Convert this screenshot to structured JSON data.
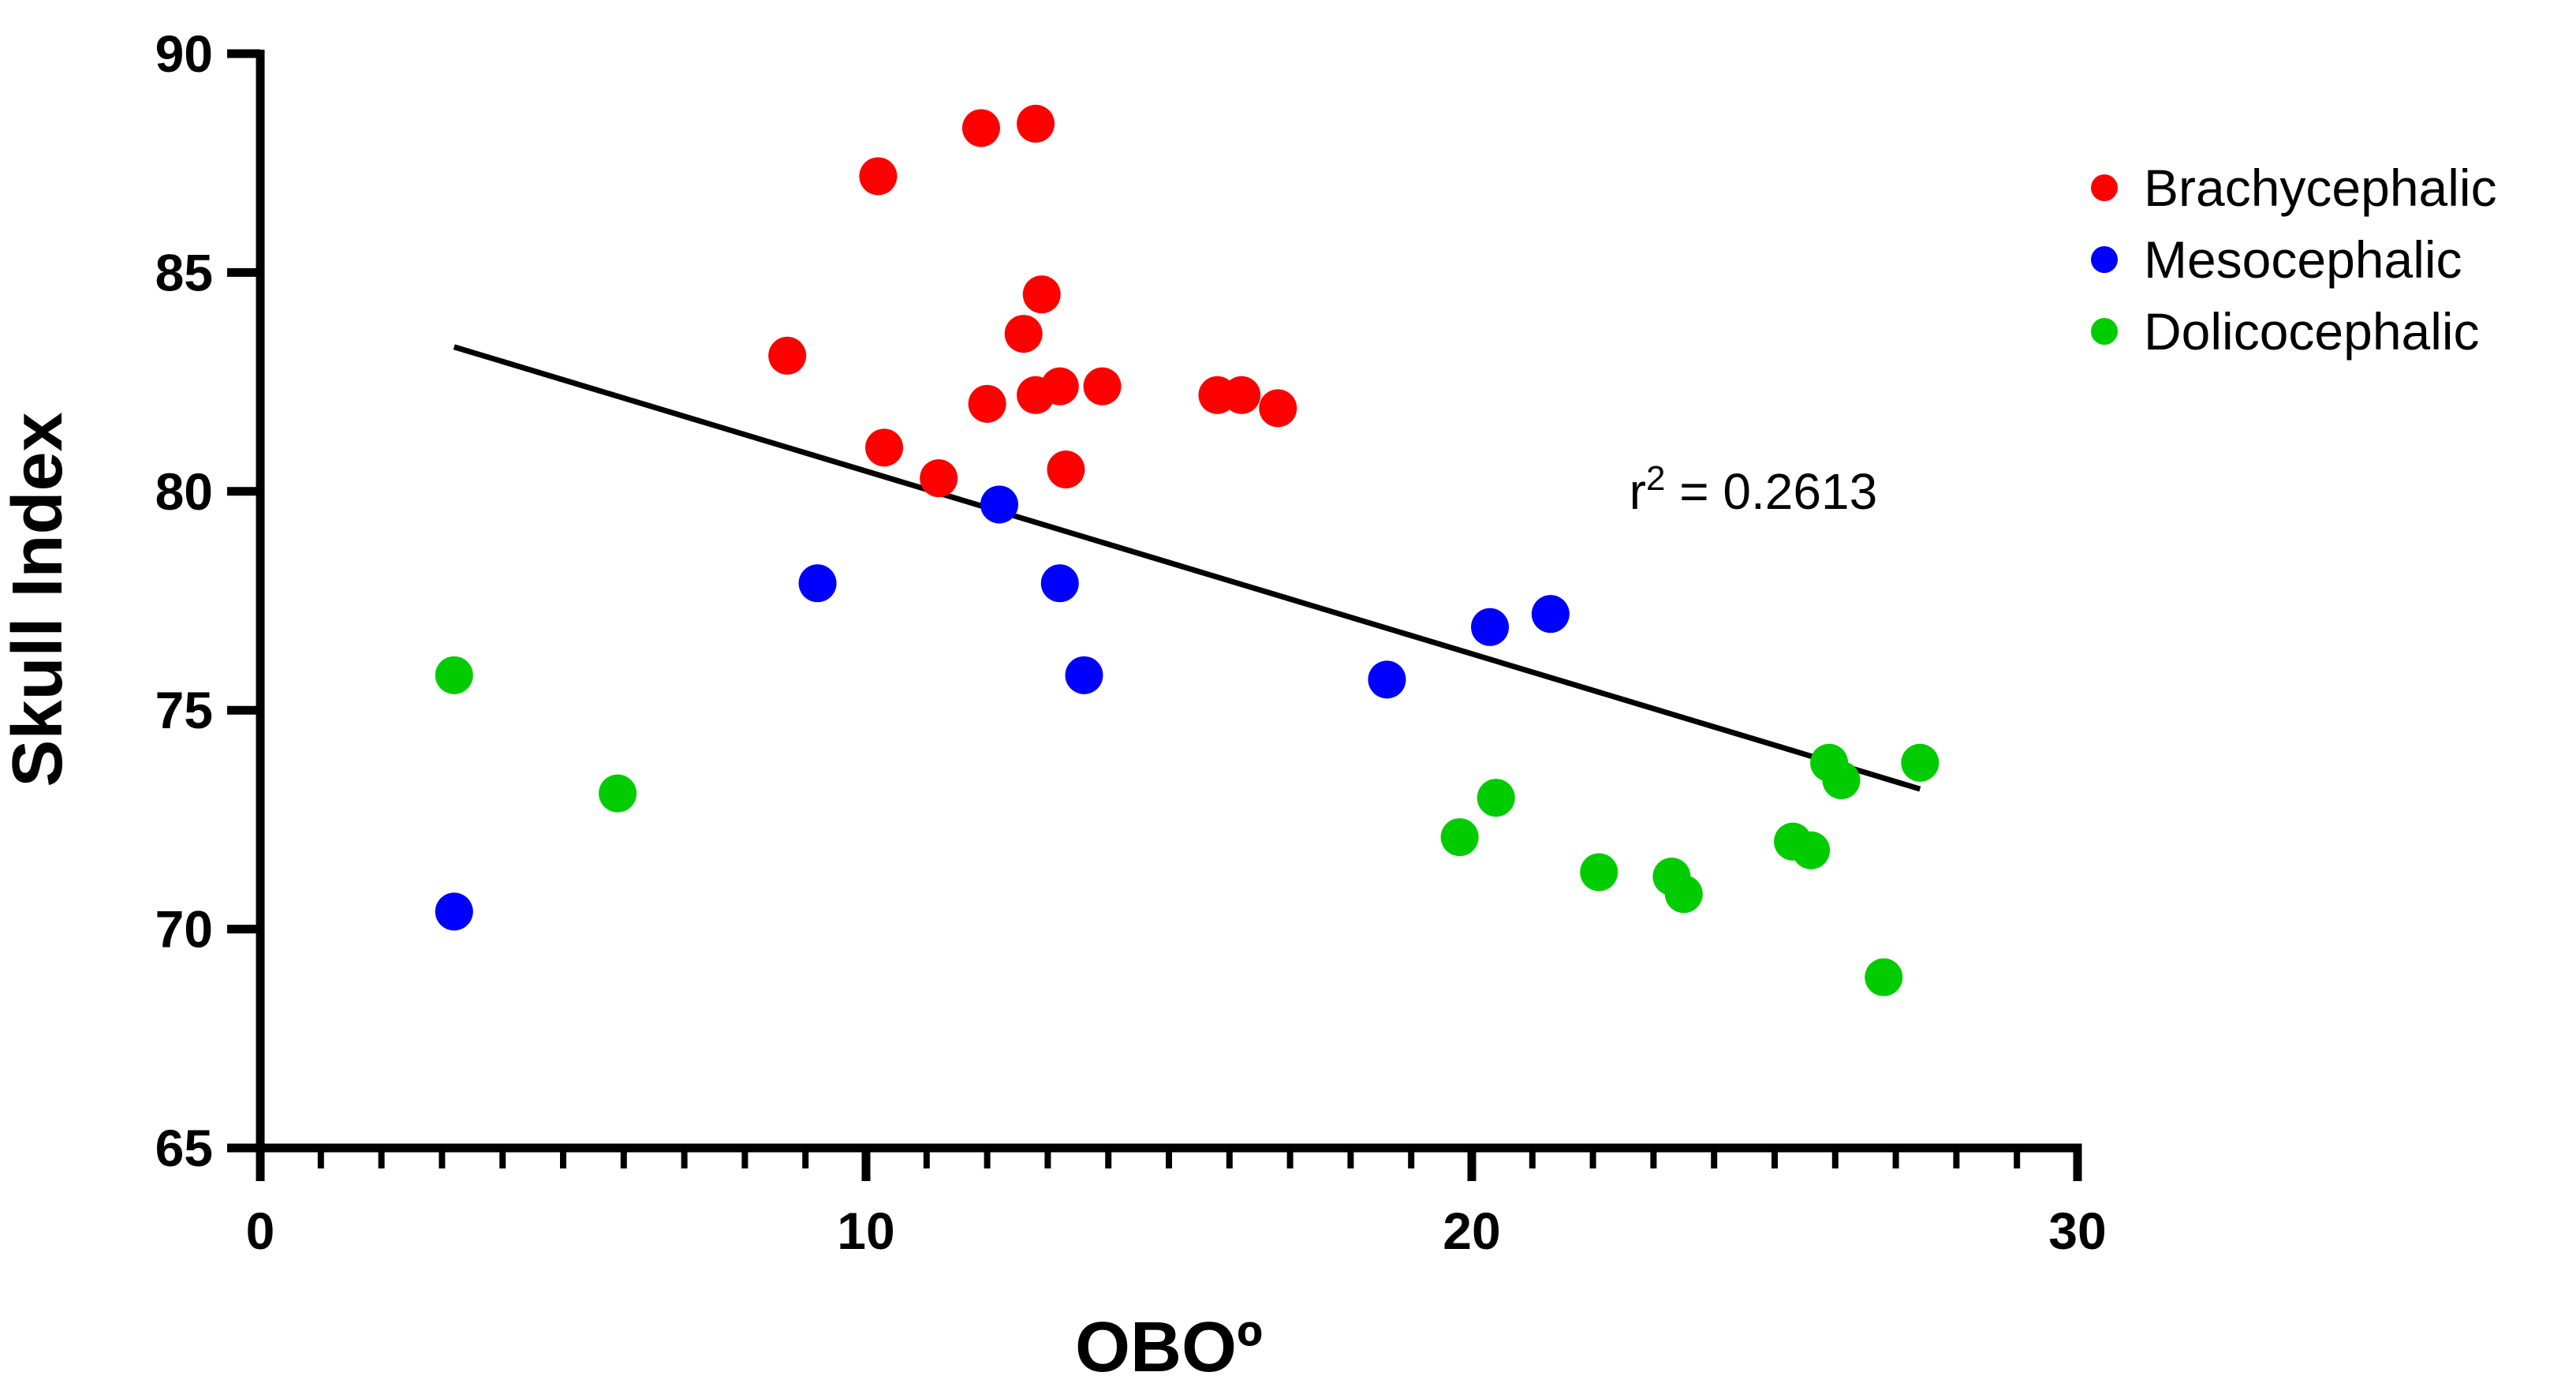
{
  "chart_data": {
    "type": "scatter",
    "title": "",
    "xlabel": "OBOº",
    "ylabel": "Skull Index",
    "xlim": [
      0,
      30
    ],
    "ylim": [
      65,
      90
    ],
    "x_ticks": [
      0,
      10,
      20,
      30
    ],
    "y_ticks": [
      65,
      70,
      75,
      80,
      85,
      90
    ],
    "x_minor_step": 1,
    "grid": false,
    "legend_position": "top-right",
    "series": [
      {
        "name": "Brachycephalic",
        "color": "#ff0000",
        "points": [
          [
            8.7,
            83.1
          ],
          [
            10.2,
            87.2
          ],
          [
            10.3,
            81.0
          ],
          [
            11.2,
            80.3
          ],
          [
            11.9,
            88.3
          ],
          [
            12.0,
            82.0
          ],
          [
            12.6,
            83.6
          ],
          [
            12.8,
            88.4
          ],
          [
            12.8,
            82.2
          ],
          [
            12.9,
            84.5
          ],
          [
            13.2,
            82.4
          ],
          [
            13.3,
            80.5
          ],
          [
            13.9,
            82.4
          ],
          [
            15.8,
            82.2
          ],
          [
            16.2,
            82.2
          ],
          [
            16.8,
            81.9
          ]
        ]
      },
      {
        "name": "Mesocephalic",
        "color": "#0000ff",
        "points": [
          [
            3.2,
            70.4
          ],
          [
            9.2,
            77.9
          ],
          [
            12.2,
            79.7
          ],
          [
            13.2,
            77.9
          ],
          [
            13.6,
            75.8
          ],
          [
            18.6,
            75.7
          ],
          [
            20.3,
            76.9
          ],
          [
            21.3,
            77.2
          ]
        ]
      },
      {
        "name": "Dolicocephalic",
        "color": "#00cc00",
        "points": [
          [
            3.2,
            75.8
          ],
          [
            5.9,
            73.1
          ],
          [
            19.8,
            72.1
          ],
          [
            20.4,
            73.0
          ],
          [
            22.1,
            71.3
          ],
          [
            23.3,
            71.2
          ],
          [
            23.5,
            70.8
          ],
          [
            25.3,
            72.0
          ],
          [
            25.6,
            71.8
          ],
          [
            25.9,
            73.8
          ],
          [
            26.1,
            73.4
          ],
          [
            26.8,
            68.9
          ],
          [
            27.4,
            73.8
          ]
        ]
      }
    ],
    "regression": {
      "x_start": 3.2,
      "y_start": 83.3,
      "x_end": 27.4,
      "y_end": 73.2,
      "color": "#000000"
    },
    "annotation": {
      "r_symbol": "r",
      "exponent": "2",
      "value_text": " = 0.2613",
      "x": 22.6,
      "y": 80.0
    }
  }
}
